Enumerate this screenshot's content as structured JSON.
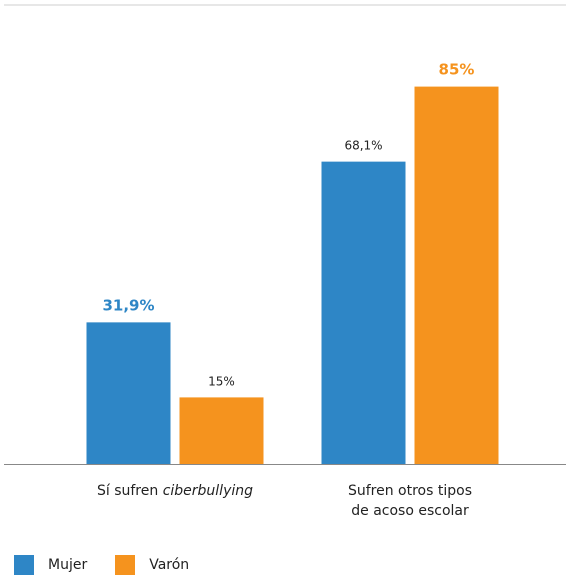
{
  "chart_data": {
    "type": "bar",
    "categories": [
      "Sí sufren ",
      "Sufren otros tipos de acoso escolar"
    ],
    "category_labels": [
      [
        {
          "text": "Sí sufren "
        },
        {
          "text": "ciberbullying",
          "italic": true
        }
      ],
      [
        {
          "text": "Sufren otros tipos"
        },
        {
          "text": "de acoso escolar"
        }
      ]
    ],
    "series": [
      {
        "name": "Mujer",
        "color": "#2e86c6",
        "values": [
          31.9,
          68.1
        ],
        "labels": [
          "31,9%",
          "68,1%"
        ]
      },
      {
        "name": "Varón",
        "color": "#f5931e",
        "values": [
          15,
          85
        ],
        "labels": [
          "15%",
          "85%"
        ]
      }
    ],
    "ylim": [
      0,
      100
    ],
    "label_styles": [
      {
        "series": 0,
        "category": 0,
        "colored": true,
        "bold": true
      },
      {
        "series": 1,
        "category": 0,
        "colored": false,
        "bold": false
      },
      {
        "series": 0,
        "category": 1,
        "colored": false,
        "bold": false
      },
      {
        "series": 1,
        "category": 1,
        "colored": true,
        "bold": true
      }
    ],
    "grid": false,
    "legend_position": "bottom-left"
  }
}
